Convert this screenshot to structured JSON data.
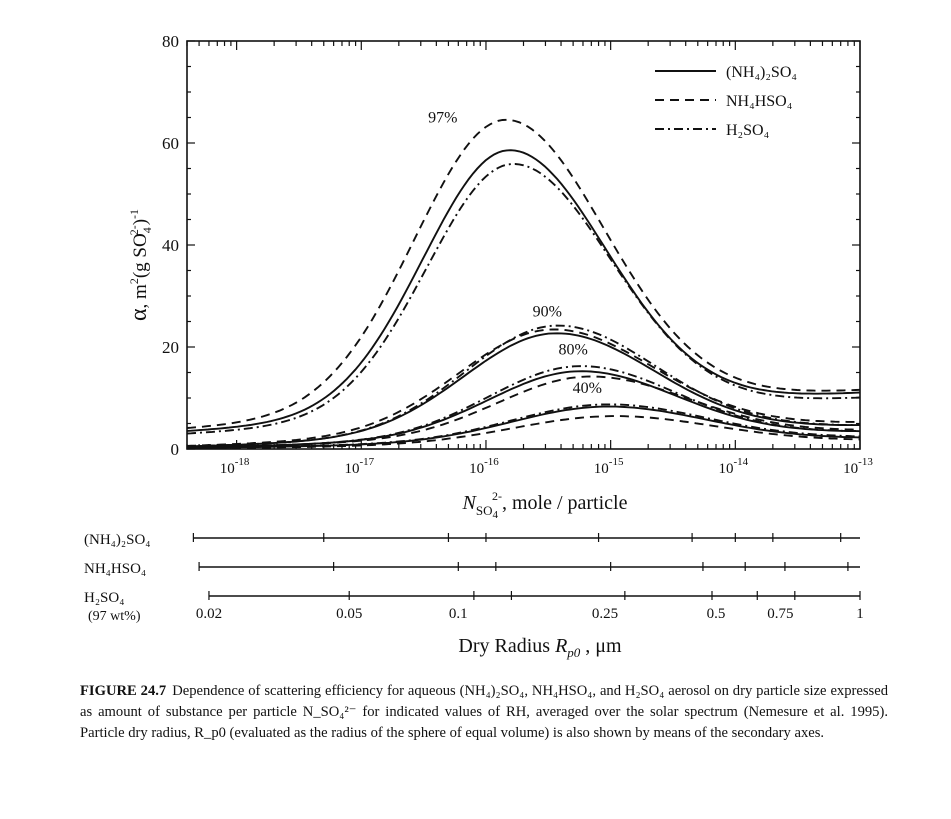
{
  "chart_data": {
    "type": "line",
    "x_scale": "log",
    "xlim": [
      4e-19,
      1e-13
    ],
    "ylim": [
      0,
      80
    ],
    "y_ticks": [
      0,
      20,
      40,
      60,
      80
    ],
    "y_tick_labels": [
      "0",
      "20",
      "40",
      "60",
      "80"
    ],
    "x_tick_labels": [
      {
        "base": "10",
        "exp": "-18",
        "x": 1e-18
      },
      {
        "base": "10",
        "exp": "-17",
        "x": 1e-17
      },
      {
        "base": "10",
        "exp": "-16",
        "x": 1e-16
      },
      {
        "base": "10",
        "exp": "-15",
        "x": 1e-15
      },
      {
        "base": "10",
        "exp": "-14",
        "x": 1e-14
      },
      {
        "base": "10",
        "exp": "-13",
        "x": 1e-13
      }
    ],
    "ylabel": {
      "alpha": "α",
      "sep": ",",
      "unit": "m",
      "sup": "2",
      "rest": "(g SO",
      "sub": "4",
      "sup2": "2-",
      "close": ")",
      "sup3": "-1"
    },
    "xlabel": {
      "N": "N",
      "sub": "SO",
      "sub2": "4",
      "sup": "2-",
      "after": ",",
      "unit": "mole / particle"
    },
    "legend": {
      "position": "top-right",
      "entries": [
        {
          "name": "(NH₄)₂SO₄",
          "style": "solid"
        },
        {
          "name": "NH₄HSO₄",
          "style": "dashed"
        },
        {
          "name": "H₂SO₄",
          "style": "dashdot"
        }
      ]
    },
    "annotations": [
      "97%",
      "90%",
      "80%",
      "40%"
    ],
    "rh_groups": [
      {
        "label": "97%",
        "label_x": 4.5e-17,
        "label_y": 64,
        "series": [
          {
            "style": "solid",
            "peak_x": 1.5e-16,
            "peak_y": 62.5,
            "w_left": 0.68,
            "w_right": 0.78,
            "a0": 3.5,
            "a1": 7.5
          },
          {
            "style": "dashed",
            "peak_x": 1.4e-16,
            "peak_y": 68.5,
            "w_left": 0.72,
            "w_right": 0.8,
            "a0": 4.0,
            "a1": 7.5
          },
          {
            "style": "dashdot",
            "peak_x": 1.6e-16,
            "peak_y": 59.5,
            "w_left": 0.68,
            "w_right": 0.79,
            "a0": 3.0,
            "a1": 7.0
          }
        ]
      },
      {
        "label": "90%",
        "label_x": 3.1e-16,
        "label_y": 26,
        "series": [
          {
            "style": "solid",
            "peak_x": 3.5e-16,
            "peak_y": 24.5,
            "w_left": 0.72,
            "w_right": 0.8,
            "a0": 0.5,
            "a1": 4.0
          },
          {
            "style": "dashed",
            "peak_x": 3.3e-16,
            "peak_y": 25.5,
            "w_left": 0.74,
            "w_right": 0.82,
            "a0": 0.6,
            "a1": 4.5
          },
          {
            "style": "dashdot",
            "peak_x": 3.6e-16,
            "peak_y": 26.0,
            "w_left": 0.72,
            "w_right": 0.8,
            "a0": 0.5,
            "a1": 4.0
          }
        ]
      },
      {
        "label": "80%",
        "label_x": 5e-16,
        "label_y": 18.5,
        "series": [
          {
            "style": "solid",
            "peak_x": 5.5e-16,
            "peak_y": 16.5,
            "w_left": 0.72,
            "w_right": 0.78,
            "a0": 0.3,
            "a1": 3.0
          },
          {
            "style": "dashed",
            "peak_x": 6.5e-16,
            "peak_y": 15.5,
            "w_left": 0.72,
            "w_right": 0.8,
            "a0": 0.3,
            "a1": 3.2
          },
          {
            "style": "dashdot",
            "peak_x": 5.5e-16,
            "peak_y": 17.5,
            "w_left": 0.72,
            "w_right": 0.78,
            "a0": 0.3,
            "a1": 3.0
          }
        ]
      },
      {
        "label": "40%",
        "label_x": 6.5e-16,
        "label_y": 11,
        "series": [
          {
            "style": "solid",
            "peak_x": 9e-16,
            "peak_y": 9.0,
            "w_left": 0.75,
            "w_right": 0.8,
            "a0": 0.2,
            "a1": 1.8
          },
          {
            "style": "dashed",
            "peak_x": 1e-15,
            "peak_y": 7.0,
            "w_left": 0.78,
            "w_right": 0.82,
            "a0": 0.1,
            "a1": 1.5
          },
          {
            "style": "dashdot",
            "peak_x": 9e-16,
            "peak_y": 9.5,
            "w_left": 0.75,
            "w_right": 0.8,
            "a0": 0.2,
            "a1": 2.0
          }
        ]
      }
    ]
  },
  "secondary_axes": {
    "rows": [
      {
        "label": "(NH₄)₂SO₄",
        "ticks_x": [
          4.5e-19,
          5e-18,
          5e-17,
          1e-16,
          8e-16,
          4.5e-15,
          1e-14,
          2e-14,
          7e-14
        ]
      },
      {
        "label": "NH₄HSO₄",
        "ticks_x": [
          5e-19,
          6e-18,
          6e-17,
          1.2e-16,
          1e-15,
          5.5e-15,
          1.2e-14,
          2.5e-14,
          8e-14
        ]
      },
      {
        "label": "H₂SO₄",
        "sublabel": "(97 wt%)",
        "ticks_x": [
          6e-19,
          8e-18,
          8e-17,
          1.6e-16,
          1.3e-15,
          6.5e-15,
          1.5e-14,
          3e-14,
          1e-13
        ]
      }
    ],
    "tick_labels": [
      {
        "text": "0.02",
        "x": 6e-19
      },
      {
        "text": "0.05",
        "x": 8e-18
      },
      {
        "text": "0.1",
        "x": 6e-17
      },
      {
        "text": "0.25",
        "x": 9e-16
      },
      {
        "text": "0.5",
        "x": 7e-15
      },
      {
        "text": "0.75",
        "x": 2.3e-14
      },
      {
        "text": "1",
        "x": 1e-13
      }
    ],
    "title": {
      "pre": "Dry   Radius ",
      "R": "R",
      "sub": "p0",
      "post": " ,  μm"
    }
  },
  "caption": {
    "label": "FIGURE 24.7",
    "text": "Dependence of scattering efficiency for aqueous (NH₄)₂SO₄, NH₄HSO₄, and H₂SO₄ aerosol on dry particle size expressed as amount of substance per particle N_SO₄²⁻ for indicated values of RH, averaged over the solar spectrum (Nemesure et al. 1995). Particle dry radius, R_p0 (evaluated as the radius of the sphere of equal volume) is also shown by means of the secondary axes."
  }
}
